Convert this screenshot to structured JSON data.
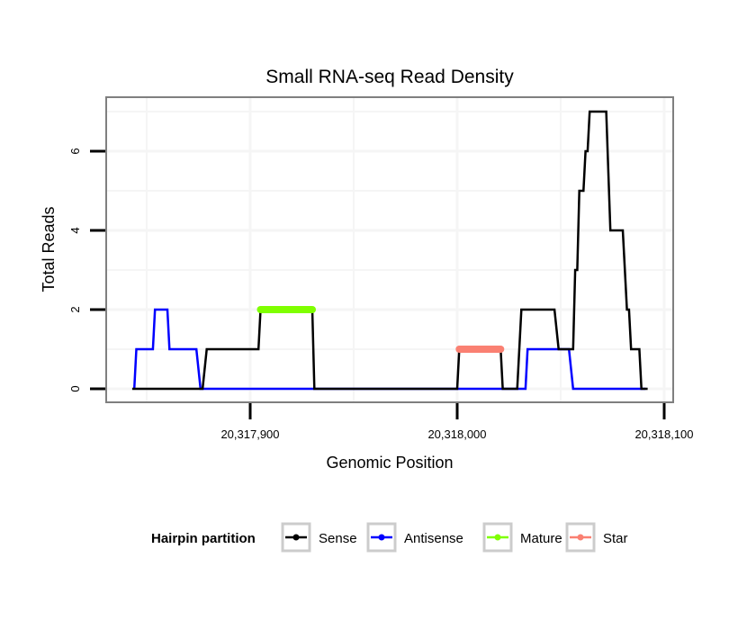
{
  "chart_data": {
    "type": "line",
    "title": "Small RNA-seq Read Density",
    "xlabel": "Genomic Position",
    "ylabel": "Total Reads",
    "xlim": [
      20317838,
      20318106
    ],
    "ylim": [
      -0.35,
      7.35
    ],
    "x_ticks": [
      20317900,
      20318000,
      20318100
    ],
    "x_tick_labels": [
      "20,317,900",
      "20,318,000",
      "20,318,100"
    ],
    "y_ticks": [
      0,
      2,
      4,
      6
    ],
    "y_tick_labels": [
      "0",
      "2",
      "4",
      "6"
    ],
    "grid": true,
    "legend": {
      "title": "Hairpin partition",
      "placement": "bottom",
      "entries": [
        {
          "name": "Sense",
          "color": "#000000"
        },
        {
          "name": "Antisense",
          "color": "#0000ff"
        },
        {
          "name": "Mature",
          "color": "#7fff00"
        },
        {
          "name": "Star",
          "color": "#fa8072"
        }
      ]
    },
    "series": [
      {
        "name": "Sense",
        "color": "#000000",
        "points": [
          [
            20317843,
            0
          ],
          [
            20317877,
            0
          ],
          [
            20317879,
            1
          ],
          [
            20317904,
            1
          ],
          [
            20317905,
            2
          ],
          [
            20317930,
            2
          ],
          [
            20317931,
            0
          ],
          [
            20318000,
            0
          ],
          [
            20318001,
            1
          ],
          [
            20318021,
            1
          ],
          [
            20318022,
            0
          ],
          [
            20318029,
            0
          ],
          [
            20318031,
            2
          ],
          [
            20318047,
            2
          ],
          [
            20318049,
            1
          ],
          [
            20318056,
            1
          ],
          [
            20318057,
            3
          ],
          [
            20318058,
            3
          ],
          [
            20318059,
            5
          ],
          [
            20318061,
            5
          ],
          [
            20318062,
            6
          ],
          [
            20318063,
            6
          ],
          [
            20318064,
            7
          ],
          [
            20318072,
            7
          ],
          [
            20318074,
            4
          ],
          [
            20318080,
            4
          ],
          [
            20318082,
            2
          ],
          [
            20318083,
            2
          ],
          [
            20318084,
            1
          ],
          [
            20318088,
            1
          ],
          [
            20318089,
            0
          ],
          [
            20318092,
            0
          ]
        ]
      },
      {
        "name": "Antisense",
        "color": "#0000ff",
        "points": [
          [
            20317844,
            0
          ],
          [
            20317845,
            1
          ],
          [
            20317853,
            1
          ],
          [
            20317854,
            2
          ],
          [
            20317860,
            2
          ],
          [
            20317861,
            1
          ],
          [
            20317874,
            1
          ],
          [
            20317876,
            0
          ],
          [
            20318033,
            0
          ],
          [
            20318034,
            1
          ],
          [
            20318054,
            1
          ],
          [
            20318056,
            0
          ],
          [
            20318091,
            0
          ]
        ]
      },
      {
        "name": "Mature",
        "color": "#7fff00",
        "points": [
          [
            20317905,
            2
          ],
          [
            20317930,
            2
          ]
        ]
      },
      {
        "name": "Star",
        "color": "#fa8072",
        "points": [
          [
            20318001,
            1
          ],
          [
            20318021,
            1
          ]
        ]
      }
    ]
  }
}
